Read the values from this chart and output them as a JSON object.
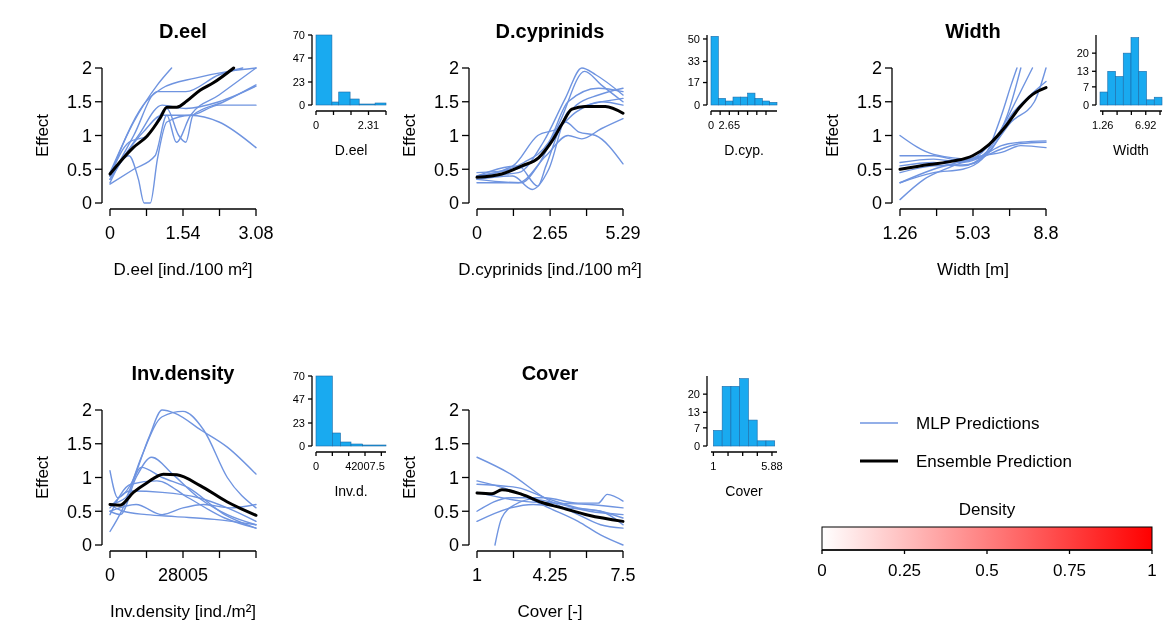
{
  "chart_data": [
    {
      "type": "line",
      "title": "D.eel",
      "xlabel": "D.eel [ind./100 m²]",
      "ylabel": "Effect",
      "xlim": [
        0,
        3.08
      ],
      "xticks": [
        0,
        {
          "value": 0.77,
          "label": null
        },
        1.54,
        {
          "value": 2.31,
          "label": null
        },
        3.08
      ],
      "ylim": [
        0,
        2
      ],
      "yticks": [
        0,
        0.5,
        1,
        1.5,
        2
      ],
      "series": [
        {
          "color": "#6f94e0",
          "x": [
            0,
            0.5,
            1.0,
            1.3
          ],
          "values": [
            0.45,
            1.2,
            1.75,
            2.0
          ]
        },
        {
          "color": "#6f94e0",
          "x": [
            0,
            0.7,
            1.1,
            1.8,
            2.5,
            3.08
          ],
          "values": [
            0.4,
            1.45,
            1.7,
            1.85,
            1.95,
            2.0
          ]
        },
        {
          "color": "#6f94e0",
          "x": [
            0,
            0.5,
            1.0,
            1.6,
            2.3,
            2.8
          ],
          "values": [
            0.35,
            1.0,
            1.65,
            1.65,
            1.9,
            2.0
          ]
        },
        {
          "color": "#6f94e0",
          "x": [
            0,
            0.6,
            1.1,
            1.6,
            2.3,
            3.08
          ],
          "values": [
            0.35,
            1.0,
            1.45,
            1.4,
            1.5,
            1.73
          ]
        },
        {
          "color": "#6f94e0",
          "x": [
            0,
            0.7,
            1.1,
            1.7,
            2.3,
            3.08
          ],
          "values": [
            0.4,
            1.05,
            1.3,
            1.3,
            1.45,
            1.45
          ]
        },
        {
          "color": "#6f94e0",
          "x": [
            0,
            0.4,
            0.6,
            0.72,
            0.85,
            1.0,
            1.2,
            1.7,
            2.3,
            3.08
          ],
          "values": [
            0.3,
            0.7,
            0.35,
            0,
            0,
            0.65,
            1.2,
            1.3,
            1.2,
            0.82
          ]
        },
        {
          "color": "#6f94e0",
          "x": [
            0,
            0.5,
            0.95,
            1.2,
            1.4,
            1.7,
            2.3,
            3.08
          ],
          "values": [
            0.28,
            0.5,
            0.7,
            1.3,
            0.9,
            1.3,
            1.6,
            2.0
          ]
        },
        {
          "color": "#6f94e0",
          "x": [
            0,
            0.4,
            0.8,
            1.2,
            1.45,
            1.6,
            1.75,
            2.4,
            3.08
          ],
          "values": [
            0.4,
            0.9,
            1.0,
            1.4,
            1.0,
            0.9,
            1.3,
            1.5,
            1.75
          ]
        },
        {
          "color": "#000000",
          "x": [
            0,
            0.49,
            0.78,
            1.06,
            1.2,
            1.41,
            1.62,
            1.9,
            2.18,
            2.61
          ],
          "values": [
            0.43,
            0.82,
            0.99,
            1.26,
            1.42,
            1.42,
            1.51,
            1.67,
            1.78,
            2.0
          ]
        }
      ]
    },
    {
      "type": "histogram",
      "xlabel": "D.eel",
      "bins": [
        0,
        0.7,
        1.0,
        1.5,
        1.9,
        2.6,
        3.08
      ],
      "values": [
        70,
        3,
        13,
        6,
        1,
        2
      ],
      "color": "#19aaf0",
      "xlim": [
        0,
        3.08
      ],
      "xticks": [
        0,
        {
          "value": 0.77,
          "label": null
        },
        {
          "value": 1.54,
          "label": null
        },
        2.31,
        {
          "value": 3.08,
          "label": null
        }
      ],
      "ylim": [
        0,
        70
      ],
      "yticks": [
        0,
        23,
        47,
        70
      ]
    },
    {
      "type": "line",
      "title": "D.cyprinids",
      "xlabel": "D.cyprinids [ind./100 m²]",
      "ylabel": "Effect",
      "xlim": [
        0,
        5.29
      ],
      "xticks": [
        0,
        {
          "value": 1.32,
          "label": null
        },
        2.65,
        {
          "value": 3.97,
          "label": null
        },
        5.29
      ],
      "ylim": [
        0,
        2
      ],
      "yticks": [
        0,
        0.5,
        1,
        1.5,
        2
      ],
      "series": [
        {
          "color": "#6f94e0",
          "x": [
            0,
            1.5,
            2.4,
            3.2,
            3.8,
            4.3,
            5.29
          ],
          "values": [
            0.4,
            0.45,
            0.9,
            1.55,
            2.0,
            1.9,
            1.6
          ]
        },
        {
          "color": "#6f94e0",
          "x": [
            0,
            1.6,
            2.2,
            3.0,
            3.9,
            4.5,
            5.29
          ],
          "values": [
            0.35,
            0.3,
            0.55,
            1.2,
            1.95,
            1.75,
            1.5
          ]
        },
        {
          "color": "#6f94e0",
          "x": [
            0,
            1.5,
            2.2,
            2.5,
            3.1,
            3.6,
            4.4,
            5.29
          ],
          "values": [
            0.4,
            0.55,
            0.25,
            0.55,
            1.2,
            1.45,
            1.6,
            1.7
          ]
        },
        {
          "color": "#6f94e0",
          "x": [
            0,
            1.4,
            2.4,
            3.2,
            3.7,
            4.3,
            5.29
          ],
          "values": [
            0.45,
            0.5,
            0.75,
            1.2,
            1.05,
            1.0,
            0.58
          ]
        },
        {
          "color": "#6f94e0",
          "x": [
            0,
            1.3,
            2.0,
            2.6,
            3.3,
            4.0,
            5.29
          ],
          "values": [
            0.35,
            0.4,
            0.2,
            0.5,
            1.35,
            1.45,
            1.55
          ]
        },
        {
          "color": "#6f94e0",
          "x": [
            0,
            1.7,
            2.6,
            3.3,
            4.4,
            5.29
          ],
          "values": [
            0.4,
            0.6,
            0.9,
            1.5,
            1.7,
            1.65
          ]
        },
        {
          "color": "#6f94e0",
          "x": [
            0,
            1.5,
            2.5,
            3.3,
            3.8,
            4.5,
            5.29
          ],
          "values": [
            0.3,
            0.3,
            0.7,
            1.0,
            0.95,
            1.1,
            1.25
          ]
        },
        {
          "color": "#6f94e0",
          "x": [
            0,
            1.3,
            2.2,
            2.9,
            3.6,
            4.5,
            5.29
          ],
          "values": [
            0.4,
            0.55,
            1.0,
            1.1,
            1.35,
            1.5,
            1.45
          ]
        },
        {
          "color": "#000000",
          "x": [
            0,
            0.9,
            1.63,
            2.23,
            2.72,
            3.08,
            3.44,
            3.92,
            4.65,
            5.29
          ],
          "values": [
            0.38,
            0.43,
            0.55,
            0.67,
            0.92,
            1.17,
            1.39,
            1.43,
            1.43,
            1.33
          ]
        }
      ]
    },
    {
      "type": "histogram",
      "xlabel": "D.cyp.",
      "bins": [
        0,
        1.06,
        2.12,
        3.18,
        4.24,
        5.3,
        6.36,
        7.42,
        8.48,
        9.54
      ],
      "values": [
        52,
        5,
        3,
        6,
        6,
        9,
        5,
        3,
        2
      ],
      "color": "#19aaf0",
      "xlim": [
        0,
        9.54
      ],
      "xticks": [
        0,
        {
          "value": 1.32,
          "label": null
        },
        2.65,
        {
          "value": 3.97,
          "label": null
        },
        {
          "value": 5.29,
          "label": null
        },
        {
          "value": 6.62,
          "label": null
        },
        {
          "value": 7.95,
          "label": null
        }
      ],
      "ylim": [
        0,
        53
      ],
      "yticks": [
        0,
        17,
        33,
        50
      ]
    },
    {
      "type": "line",
      "title": "Width",
      "xlabel": "Width [m]",
      "ylabel": "Effect",
      "xlim": [
        1.26,
        8.8
      ],
      "xticks": [
        1.26,
        {
          "value": 3.15,
          "label": null
        },
        5.03,
        {
          "value": 6.92,
          "label": null
        },
        8.8
      ],
      "ylim": [
        0,
        2
      ],
      "yticks": [
        0,
        0.5,
        1,
        1.5,
        2
      ],
      "series": [
        {
          "color": "#6f94e0",
          "x": [
            1.26,
            3.0,
            5.0,
            6.0,
            6.8,
            7.5
          ],
          "values": [
            1.0,
            0.72,
            0.65,
            0.85,
            1.3,
            2.0
          ]
        },
        {
          "color": "#6f94e0",
          "x": [
            1.26,
            2.5,
            4.0,
            5.5,
            6.5,
            7.4,
            8.1
          ],
          "values": [
            0.05,
            0.35,
            0.55,
            0.75,
            1.1,
            1.6,
            2.0
          ]
        },
        {
          "color": "#6f94e0",
          "x": [
            1.26,
            3.0,
            4.5,
            5.5,
            6.5,
            7.0,
            7.3
          ],
          "values": [
            0.3,
            0.45,
            0.5,
            0.65,
            1.3,
            1.75,
            2.0
          ]
        },
        {
          "color": "#6f94e0",
          "x": [
            1.26,
            3.0,
            4.5,
            5.5,
            6.5,
            7.5,
            8.8
          ],
          "values": [
            0.6,
            0.65,
            0.6,
            0.68,
            0.8,
            0.88,
            0.9
          ]
        },
        {
          "color": "#6f94e0",
          "x": [
            1.26,
            3.0,
            4.5,
            5.5,
            6.5,
            7.5,
            8.8
          ],
          "values": [
            0.7,
            0.7,
            0.62,
            0.7,
            0.85,
            0.9,
            0.92
          ]
        },
        {
          "color": "#6f94e0",
          "x": [
            1.26,
            3.0,
            4.8,
            6.0,
            7.0,
            8.0,
            8.8
          ],
          "values": [
            0.45,
            0.55,
            0.57,
            0.8,
            1.3,
            1.6,
            1.8
          ]
        },
        {
          "color": "#6f94e0",
          "x": [
            1.26,
            3.0,
            4.5,
            5.8,
            7.0,
            8.2,
            8.8
          ],
          "values": [
            0.55,
            0.6,
            0.55,
            0.75,
            1.2,
            1.5,
            2.0
          ]
        },
        {
          "color": "#6f94e0",
          "x": [
            1.26,
            3.0,
            4.5,
            5.5,
            6.5,
            7.5,
            8.8
          ],
          "values": [
            0.3,
            0.5,
            0.62,
            0.7,
            0.75,
            0.85,
            0.82
          ]
        },
        {
          "color": "#000000",
          "x": [
            1.26,
            2.77,
            3.98,
            5.01,
            5.87,
            6.73,
            7.42,
            8.11,
            8.8
          ],
          "values": [
            0.5,
            0.57,
            0.62,
            0.7,
            0.87,
            1.14,
            1.41,
            1.61,
            1.71
          ]
        }
      ]
    },
    {
      "type": "histogram",
      "xlabel": "Width",
      "bins": [
        0.9,
        1.92,
        2.94,
        3.96,
        4.98,
        6.0,
        7.02,
        8.04,
        9.06
      ],
      "values": [
        5,
        13,
        11,
        20,
        26,
        13,
        2,
        3
      ],
      "color": "#19aaf0",
      "xlim": [
        0.9,
        9.06
      ],
      "xticks": [
        1.26,
        {
          "value": 3.15,
          "label": null
        },
        {
          "value": 5.03,
          "label": null
        },
        6.92,
        {
          "value": 8.8,
          "label": null
        }
      ],
      "ylim": [
        0,
        27
      ],
      "yticks": [
        0,
        7,
        13,
        20
      ]
    },
    {
      "type": "line",
      "title": "Inv.density",
      "xlabel": "Inv.density [ind./m²]",
      "ylabel": "Effect",
      "xlim": [
        0,
        56010
      ],
      "xticks": [
        0,
        {
          "value": 14002.5,
          "label": null
        },
        28005,
        {
          "value": 42007.5,
          "label": null
        },
        {
          "value": 56010,
          "label": null
        }
      ],
      "ylim": [
        0,
        2
      ],
      "yticks": [
        0,
        0.5,
        1,
        1.5,
        2
      ],
      "series": [
        {
          "color": "#6f94e0",
          "x": [
            0,
            3000,
            8000,
            15000,
            20000,
            25000,
            35000,
            45000,
            56010
          ],
          "values": [
            1.1,
            0.7,
            0.9,
            1.6,
            2.0,
            1.95,
            1.7,
            1.45,
            1.05
          ]
        },
        {
          "color": "#6f94e0",
          "x": [
            0,
            5000,
            12000,
            20000,
            28000,
            36000,
            45000,
            56010
          ],
          "values": [
            0.2,
            0.55,
            1.3,
            1.9,
            1.98,
            1.7,
            1.0,
            0.55
          ]
        },
        {
          "color": "#6f94e0",
          "x": [
            0,
            4000,
            10000,
            16000,
            24000,
            34000,
            45000,
            56010
          ],
          "values": [
            0.5,
            0.45,
            1.0,
            1.3,
            1.05,
            0.7,
            0.45,
            0.3
          ]
        },
        {
          "color": "#6f94e0",
          "x": [
            0,
            6000,
            12000,
            20000,
            30000,
            44000,
            56010
          ],
          "values": [
            0.6,
            0.7,
            1.15,
            1.0,
            0.85,
            0.45,
            0.25
          ]
        },
        {
          "color": "#6f94e0",
          "x": [
            0,
            8000,
            20000,
            34000,
            45000,
            56010
          ],
          "values": [
            0.55,
            0.8,
            0.78,
            0.7,
            0.55,
            0.35
          ]
        },
        {
          "color": "#6f94e0",
          "x": [
            0,
            5000,
            14000,
            25000,
            40000,
            56010
          ],
          "values": [
            0.6,
            0.5,
            0.45,
            0.42,
            0.38,
            0.3
          ]
        },
        {
          "color": "#6f94e0",
          "x": [
            0,
            10000,
            20000,
            28000,
            36000,
            46000,
            56010
          ],
          "values": [
            0.5,
            0.6,
            0.45,
            0.55,
            0.6,
            0.55,
            0.6
          ]
        },
        {
          "color": "#6f94e0",
          "x": [
            0,
            8000,
            18000,
            30000,
            44000,
            56010
          ],
          "values": [
            0.45,
            0.9,
            0.95,
            0.7,
            0.4,
            0.25
          ]
        },
        {
          "color": "#000000",
          "x": [
            0,
            3845,
            8970,
            14100,
            20500,
            25630,
            34600,
            44860,
            56010
          ],
          "values": [
            0.6,
            0.59,
            0.78,
            0.92,
            1.05,
            1.04,
            0.88,
            0.64,
            0.44
          ]
        }
      ]
    },
    {
      "type": "histogram",
      "xlabel": "Inv.d.",
      "bins": [
        0,
        14000,
        21000,
        30000,
        40000,
        60000
      ],
      "values": [
        70,
        13,
        4,
        2,
        1
      ],
      "color": "#19aaf0",
      "xlim": [
        0,
        60000
      ],
      "xticks": [
        0,
        {
          "value": 14002.5,
          "label": null
        },
        {
          "value": 28005,
          "label": null
        },
        42007.5,
        {
          "value": 56010,
          "label": null
        }
      ],
      "ylim": [
        0,
        70
      ],
      "yticks": [
        0,
        23,
        47,
        70
      ]
    },
    {
      "type": "line",
      "title": "Cover",
      "xlabel": "Cover [-]",
      "ylabel": "Effect",
      "xlim": [
        1,
        7.5
      ],
      "xticks": [
        1,
        {
          "value": 2.625,
          "label": null
        },
        4.25,
        {
          "value": 5.875,
          "label": null
        },
        7.5
      ],
      "ylim": [
        0,
        2
      ],
      "yticks": [
        0,
        0.5,
        1,
        1.5,
        2
      ],
      "legend": "right",
      "clabel": "Density",
      "clim": [
        0,
        1
      ],
      "cticks": [
        0,
        0.25,
        0.5,
        0.75,
        1
      ],
      "series": [
        {
          "name": "MLP Predictions",
          "color": "#6f94e0",
          "x": [
            1,
            2.5,
            4.0,
            5.5,
            6.5,
            7.5
          ],
          "values": [
            1.3,
            1.05,
            0.7,
            0.45,
            0.3,
            0.25
          ]
        },
        {
          "color": "#6f94e0",
          "x": [
            1,
            2.6,
            4.2,
            5.5,
            6.5,
            7.5
          ],
          "values": [
            0.95,
            0.8,
            0.55,
            0.35,
            0.15,
            0.0
          ]
        },
        {
          "color": "#6f94e0",
          "x": [
            1,
            2.5,
            4.0,
            5.5,
            6.4,
            6.8,
            7.5
          ],
          "values": [
            0.5,
            0.7,
            0.7,
            0.62,
            0.62,
            0.75,
            0.65
          ]
        },
        {
          "color": "#6f94e0",
          "x": [
            1.8,
            2.1,
            2.7,
            3.5,
            4.5,
            6.0,
            7.5
          ],
          "values": [
            0.0,
            0.4,
            0.6,
            0.68,
            0.62,
            0.5,
            0.45
          ]
        },
        {
          "color": "#6f94e0",
          "x": [
            1,
            2.5,
            3.5,
            5.0,
            6.5,
            7.5
          ],
          "values": [
            0.35,
            0.55,
            0.6,
            0.55,
            0.5,
            0.3
          ]
        },
        {
          "color": "#6f94e0",
          "x": [
            1,
            2.8,
            4.2,
            5.5,
            6.5,
            7.5
          ],
          "values": [
            0.9,
            0.85,
            0.68,
            0.55,
            0.5,
            0.4
          ]
        },
        {
          "color": "#6f94e0",
          "x": [
            1,
            3.0,
            4.5,
            6.0,
            7.5
          ],
          "values": [
            0.78,
            0.65,
            0.62,
            0.6,
            0.55
          ]
        },
        {
          "name": "Ensemble Prediction",
          "color": "#000000",
          "x": [
            1,
            1.67,
            2.11,
            3.0,
            3.89,
            4.78,
            5.97,
            7.5
          ],
          "values": [
            0.77,
            0.76,
            0.82,
            0.75,
            0.63,
            0.55,
            0.44,
            0.35
          ]
        }
      ]
    },
    {
      "type": "histogram",
      "xlabel": "Cover",
      "bins": [
        1,
        1.73,
        2.46,
        3.19,
        3.92,
        4.65,
        5.38,
        6.11
      ],
      "values": [
        6,
        23,
        23,
        26,
        10,
        2,
        2
      ],
      "color": "#19aaf0",
      "xlim": [
        0.8,
        6.3
      ],
      "xticks": [
        1,
        {
          "value": 2.22,
          "label": null
        },
        {
          "value": 3.44,
          "label": null
        },
        {
          "value": 4.66,
          "label": null
        },
        5.88
      ],
      "ylim": [
        0,
        27
      ],
      "yticks": [
        0,
        7,
        13,
        20
      ]
    }
  ]
}
